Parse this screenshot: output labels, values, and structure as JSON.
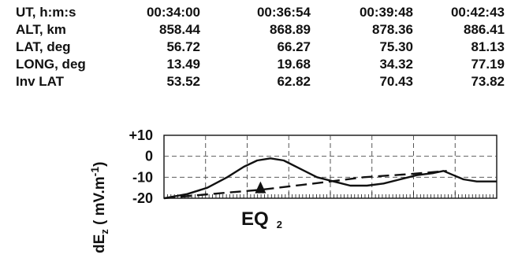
{
  "table": {
    "rows": [
      {
        "label": "UT,  h:m:s",
        "values": [
          "00:34:00",
          "00:36:54",
          "00:39:48",
          "00:42:43"
        ]
      },
      {
        "label": "ALT, km",
        "values": [
          "858.44",
          "868.89",
          "878.36",
          "886.41"
        ]
      },
      {
        "label": "LAT, deg",
        "values": [
          "56.72",
          "66.27",
          "75.30",
          "81.13"
        ]
      },
      {
        "label": "LONG, deg",
        "values": [
          "13.49",
          "19.68",
          "34.32",
          "77.19"
        ]
      },
      {
        "label": "Inv LAT",
        "values": [
          "53.52",
          "62.82",
          "70.43",
          "73.82"
        ]
      }
    ]
  },
  "chart_data": {
    "type": "line",
    "ylabel": "dEz  ( mV.m-1)",
    "ylabel_parts": {
      "main": "dE",
      "sub": "z",
      "unit_open": "( mV.m",
      "unit_sup": "-1",
      "unit_close": ")"
    },
    "yticks": [
      "+10",
      "0",
      "-10",
      "-20"
    ],
    "ylim": [
      -20,
      10
    ],
    "xlim": [
      0,
      100
    ],
    "grid": true,
    "annotation": {
      "text": "EQ",
      "sub": "2",
      "marker": "triangle",
      "x": 29,
      "y": -15
    },
    "series": [
      {
        "style": "solid",
        "points": [
          [
            0,
            -20
          ],
          [
            7,
            -18
          ],
          [
            13,
            -15
          ],
          [
            19,
            -10
          ],
          [
            24,
            -5
          ],
          [
            28,
            -2
          ],
          [
            32,
            -1
          ],
          [
            36,
            -2
          ],
          [
            41,
            -6
          ],
          [
            46,
            -10
          ],
          [
            51,
            -12
          ],
          [
            56,
            -14
          ],
          [
            61,
            -14
          ],
          [
            66,
            -13
          ],
          [
            71,
            -11
          ],
          [
            76,
            -9
          ],
          [
            81,
            -8
          ],
          [
            84,
            -7
          ],
          [
            87,
            -9
          ],
          [
            90,
            -11
          ],
          [
            94,
            -12
          ],
          [
            100,
            -12
          ]
        ]
      },
      {
        "style": "dashed",
        "points": [
          [
            0,
            -20
          ],
          [
            14,
            -18
          ],
          [
            29,
            -16
          ],
          [
            45,
            -13
          ],
          [
            60,
            -10
          ],
          [
            74,
            -8.5
          ],
          [
            85,
            -7
          ]
        ]
      }
    ]
  }
}
